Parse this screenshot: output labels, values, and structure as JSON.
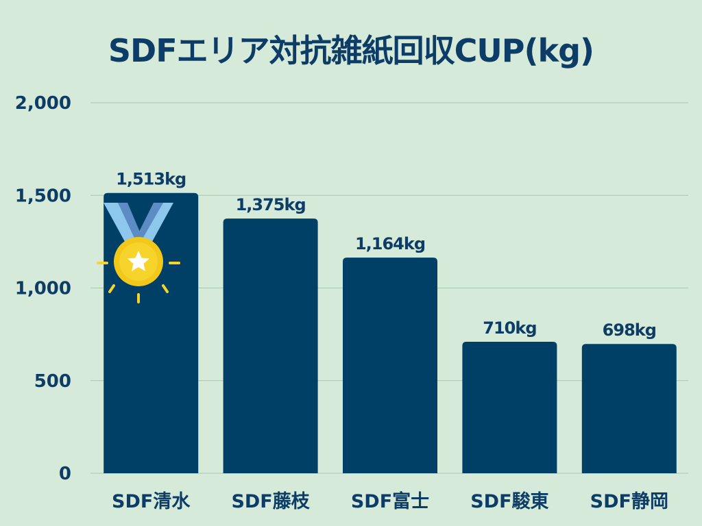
{
  "chart_data": {
    "type": "bar",
    "title": "SDFエリア対抗雑紙回収CUP(kg)",
    "categories": [
      "SDF清水",
      "SDF藤枝",
      "SDF富士",
      "SDF駿東",
      "SDF静岡"
    ],
    "values": [
      1513,
      1375,
      1164,
      710,
      698
    ],
    "data_labels": [
      "1,513kg",
      "1,375kg",
      "1,164kg",
      "710kg",
      "698kg"
    ],
    "yticks": [
      0,
      500,
      1000,
      1500,
      2000
    ],
    "ytick_labels": [
      "0",
      "500",
      "1,000",
      "1,500",
      "2,000"
    ],
    "ylim": [
      0,
      2000
    ],
    "grid": true,
    "bar_color": "#003f66",
    "highlight": {
      "category": "SDF清水",
      "icon": "gold-medal-icon"
    }
  }
}
